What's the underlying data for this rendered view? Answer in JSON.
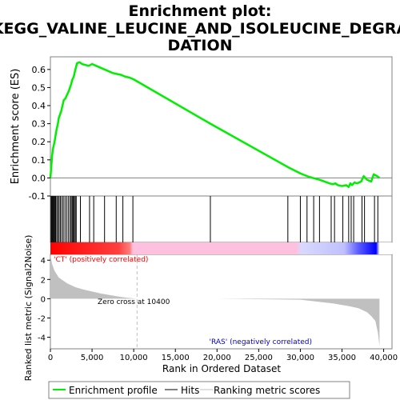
{
  "chart_data": {
    "type": "line",
    "title": "Enrichment plot:\nKEGG_VALINE_LEUCINE_AND_ISOLEUCINE_DEGRADATION",
    "title_lines": [
      "Enrichment plot:",
      "KEGG_VALINE_LEUCINE_AND_ISOLEUCINE_DEGRA",
      "DATION"
    ],
    "xlabel": "Rank in Ordered Dataset",
    "xlim": [
      0,
      41000
    ],
    "x_ticks": [
      0,
      5000,
      10000,
      15000,
      20000,
      25000,
      30000,
      35000,
      40000
    ],
    "x_tick_labels": [
      "0",
      "5,000",
      "10,000",
      "15,000",
      "20,000",
      "25,000",
      "30,000",
      "35,000",
      "40,000"
    ],
    "es_panel": {
      "ylabel": "Enrichment score (ES)",
      "ylim": [
        -0.1,
        0.67
      ],
      "y_ticks": [
        -0.1,
        0.0,
        0.1,
        0.2,
        0.3,
        0.4,
        0.5,
        0.6
      ],
      "y_tick_labels": [
        "-0.1",
        "0.0",
        "0.1",
        "0.2",
        "0.3",
        "0.4",
        "0.5",
        "0.6"
      ],
      "series": [
        {
          "name": "Enrichment profile",
          "color": "#00ee00",
          "x": [
            0,
            100,
            200,
            300,
            400,
            500,
            600,
            750,
            900,
            1000,
            1150,
            1300,
            1450,
            1600,
            1800,
            2000,
            2200,
            2350,
            2500,
            2600,
            2700,
            2800,
            2900,
            3000,
            3200,
            3500,
            3800,
            4200,
            4600,
            5000,
            5500,
            6000,
            6500,
            7000,
            7500,
            8000,
            8500,
            9000,
            9500,
            10000,
            19200,
            28500,
            30000,
            30800,
            31500,
            32300,
            33500,
            33900,
            34200,
            34500,
            35000,
            35500,
            35800,
            36000,
            36200,
            36500,
            36800,
            37300,
            37600,
            38000,
            38500,
            38800,
            39200,
            39500
          ],
          "y": [
            0.0,
            0.06,
            0.12,
            0.16,
            0.18,
            0.2,
            0.23,
            0.27,
            0.3,
            0.33,
            0.35,
            0.37,
            0.4,
            0.43,
            0.44,
            0.46,
            0.48,
            0.5,
            0.52,
            0.54,
            0.55,
            0.56,
            0.58,
            0.6,
            0.635,
            0.64,
            0.63,
            0.625,
            0.62,
            0.63,
            0.62,
            0.61,
            0.6,
            0.59,
            0.58,
            0.575,
            0.57,
            0.56,
            0.555,
            0.545,
            0.3,
            0.06,
            0.025,
            0.01,
            0.0,
            -0.01,
            -0.03,
            -0.035,
            -0.03,
            -0.04,
            -0.045,
            -0.04,
            -0.05,
            -0.03,
            -0.04,
            -0.025,
            -0.03,
            -0.02,
            0.01,
            -0.01,
            -0.02,
            0.02,
            0.01,
            0.0
          ]
        }
      ]
    },
    "hits": {
      "name": "Hits",
      "x": [
        80,
        160,
        250,
        330,
        420,
        520,
        620,
        760,
        900,
        1050,
        1200,
        1380,
        1550,
        1750,
        1950,
        2150,
        2350,
        2500,
        2620,
        2740,
        2860,
        2980,
        3100,
        3600,
        4700,
        5200,
        6500,
        7900,
        8700,
        9900,
        19200,
        28500,
        30000,
        30800,
        31600,
        32300,
        33700,
        34100,
        35100,
        35800,
        36100,
        36400,
        37400,
        37700,
        38900,
        39300
      ]
    },
    "gradient_bar": {
      "labels": [
        "'CT' (positively correlated)",
        "'RAS' (negatively correlated)"
      ],
      "colors": [
        "#ff0000",
        "#ffc0e0",
        "#d0d0ff",
        "#0000ff"
      ]
    },
    "metric_panel": {
      "ylabel": "Ranked list metric (Signal2Noise)",
      "ylim": [
        -5.2,
        4.6
      ],
      "y_ticks": [
        -4,
        -2,
        0,
        2,
        4
      ],
      "y_tick_labels": [
        "-4",
        "-2",
        "0",
        "2",
        "4"
      ],
      "zero_cross_label": "Zero cross at 10400",
      "zero_cross_x": 10400,
      "profile_x": [
        0,
        200,
        500,
        1000,
        2000,
        3000,
        4000,
        5000,
        6000,
        7000,
        8000,
        9000,
        10000,
        10400,
        20000,
        30000,
        32000,
        34000,
        36000,
        37000,
        38000,
        38500,
        39000,
        39300,
        39500
      ],
      "profile_y": [
        4.6,
        3.6,
        2.9,
        2.2,
        1.6,
        1.2,
        0.95,
        0.75,
        0.55,
        0.4,
        0.25,
        0.12,
        0.03,
        0.0,
        0.0,
        -0.1,
        -0.3,
        -0.5,
        -0.8,
        -1.0,
        -1.4,
        -1.8,
        -2.3,
        -3.5,
        -4.9
      ],
      "fill_color": "#c0c0c0"
    },
    "legend": {
      "placement": "bottom",
      "items": [
        {
          "label": "Enrichment profile",
          "color": "#00ee00"
        },
        {
          "label": "Hits",
          "color": "#000000"
        },
        {
          "label": "Ranking metric scores",
          "color": "#c0c0c0"
        }
      ]
    }
  }
}
